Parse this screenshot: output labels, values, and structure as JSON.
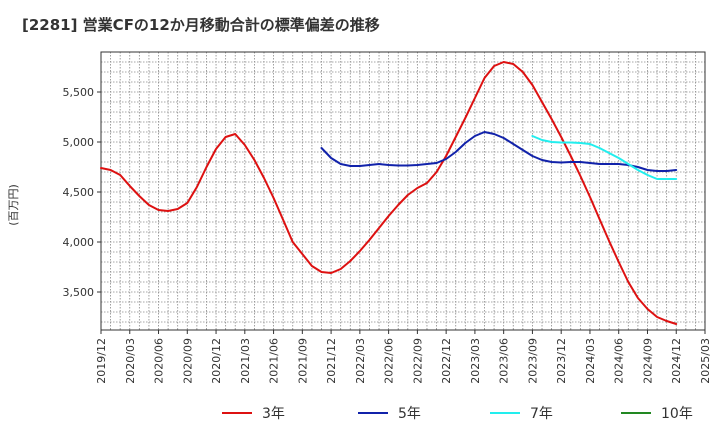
{
  "chart_data": {
    "type": "line",
    "title": "[2281]  営業CFの12か月移動合計の標準偏差の推移",
    "ylabel": "(百万円)",
    "xlabel": "",
    "ylim": [
      3120,
      5900
    ],
    "y_ticks": [
      3500,
      4000,
      4500,
      5000,
      5500
    ],
    "y_tick_labels": [
      "3,500",
      "4,000",
      "4,500",
      "5,000",
      "5,500"
    ],
    "x_tick_labels": [
      "2019/12",
      "2020/03",
      "2020/06",
      "2020/09",
      "2020/12",
      "2021/03",
      "2021/06",
      "2021/09",
      "2021/12",
      "2022/03",
      "2022/06",
      "2022/09",
      "2022/12",
      "2023/03",
      "2023/06",
      "2023/09",
      "2023/12",
      "2024/03",
      "2024/06",
      "2024/09",
      "2024/12",
      "2025/03"
    ],
    "x_start": "2019/12",
    "x_end": "2025/03",
    "grid": true,
    "legend_position": "bottom",
    "series": [
      {
        "name": "3年",
        "color": "#dd1111",
        "points": [
          [
            "2019/12",
            4740
          ],
          [
            "2020/01",
            4720
          ],
          [
            "2020/02",
            4670
          ],
          [
            "2020/03",
            4560
          ],
          [
            "2020/04",
            4460
          ],
          [
            "2020/05",
            4370
          ],
          [
            "2020/06",
            4320
          ],
          [
            "2020/07",
            4310
          ],
          [
            "2020/08",
            4330
          ],
          [
            "2020/09",
            4390
          ],
          [
            "2020/10",
            4550
          ],
          [
            "2020/11",
            4750
          ],
          [
            "2020/12",
            4930
          ],
          [
            "2021/01",
            5050
          ],
          [
            "2021/02",
            5080
          ],
          [
            "2021/03",
            4970
          ],
          [
            "2021/04",
            4820
          ],
          [
            "2021/05",
            4640
          ],
          [
            "2021/06",
            4440
          ],
          [
            "2021/07",
            4220
          ],
          [
            "2021/08",
            4000
          ],
          [
            "2021/09",
            3880
          ],
          [
            "2021/10",
            3760
          ],
          [
            "2021/11",
            3700
          ],
          [
            "2021/12",
            3690
          ],
          [
            "2022/01",
            3730
          ],
          [
            "2022/02",
            3810
          ],
          [
            "2022/03",
            3910
          ],
          [
            "2022/04",
            4020
          ],
          [
            "2022/05",
            4140
          ],
          [
            "2022/06",
            4260
          ],
          [
            "2022/07",
            4370
          ],
          [
            "2022/08",
            4470
          ],
          [
            "2022/09",
            4540
          ],
          [
            "2022/10",
            4590
          ],
          [
            "2022/11",
            4700
          ],
          [
            "2022/12",
            4860
          ],
          [
            "2023/01",
            5050
          ],
          [
            "2023/02",
            5240
          ],
          [
            "2023/03",
            5440
          ],
          [
            "2023/04",
            5640
          ],
          [
            "2023/05",
            5760
          ],
          [
            "2023/06",
            5800
          ],
          [
            "2023/07",
            5780
          ],
          [
            "2023/08",
            5700
          ],
          [
            "2023/09",
            5570
          ],
          [
            "2023/10",
            5400
          ],
          [
            "2023/11",
            5230
          ],
          [
            "2023/12",
            5050
          ],
          [
            "2024/01",
            4860
          ],
          [
            "2024/02",
            4660
          ],
          [
            "2024/03",
            4450
          ],
          [
            "2024/04",
            4230
          ],
          [
            "2024/05",
            4010
          ],
          [
            "2024/06",
            3800
          ],
          [
            "2024/07",
            3600
          ],
          [
            "2024/08",
            3440
          ],
          [
            "2024/09",
            3330
          ],
          [
            "2024/10",
            3250
          ],
          [
            "2024/11",
            3210
          ],
          [
            "2024/12",
            3180
          ]
        ]
      },
      {
        "name": "5年",
        "color": "#1122aa",
        "points": [
          [
            "2021/11",
            4940
          ],
          [
            "2021/12",
            4840
          ],
          [
            "2022/01",
            4780
          ],
          [
            "2022/02",
            4760
          ],
          [
            "2022/03",
            4760
          ],
          [
            "2022/04",
            4770
          ],
          [
            "2022/05",
            4780
          ],
          [
            "2022/06",
            4770
          ],
          [
            "2022/07",
            4765
          ],
          [
            "2022/08",
            4765
          ],
          [
            "2022/09",
            4770
          ],
          [
            "2022/10",
            4780
          ],
          [
            "2022/11",
            4790
          ],
          [
            "2022/12",
            4830
          ],
          [
            "2023/01",
            4900
          ],
          [
            "2023/02",
            4990
          ],
          [
            "2023/03",
            5060
          ],
          [
            "2023/04",
            5100
          ],
          [
            "2023/05",
            5080
          ],
          [
            "2023/06",
            5040
          ],
          [
            "2023/07",
            4980
          ],
          [
            "2023/08",
            4920
          ],
          [
            "2023/09",
            4860
          ],
          [
            "2023/10",
            4820
          ],
          [
            "2023/11",
            4800
          ],
          [
            "2023/12",
            4795
          ],
          [
            "2024/01",
            4800
          ],
          [
            "2024/02",
            4800
          ],
          [
            "2024/03",
            4790
          ],
          [
            "2024/04",
            4780
          ],
          [
            "2024/05",
            4780
          ],
          [
            "2024/06",
            4780
          ],
          [
            "2024/07",
            4770
          ],
          [
            "2024/08",
            4750
          ],
          [
            "2024/09",
            4720
          ],
          [
            "2024/10",
            4710
          ],
          [
            "2024/11",
            4710
          ],
          [
            "2024/12",
            4720
          ]
        ]
      },
      {
        "name": "7年",
        "color": "#22eeee",
        "points": [
          [
            "2023/09",
            5060
          ],
          [
            "2023/10",
            5020
          ],
          [
            "2023/11",
            5000
          ],
          [
            "2023/12",
            4995
          ],
          [
            "2024/01",
            4995
          ],
          [
            "2024/02",
            4990
          ],
          [
            "2024/03",
            4980
          ],
          [
            "2024/04",
            4940
          ],
          [
            "2024/05",
            4890
          ],
          [
            "2024/06",
            4840
          ],
          [
            "2024/07",
            4780
          ],
          [
            "2024/08",
            4720
          ],
          [
            "2024/09",
            4670
          ],
          [
            "2024/10",
            4630
          ],
          [
            "2024/11",
            4630
          ],
          [
            "2024/12",
            4630
          ]
        ]
      },
      {
        "name": "10年",
        "color": "#228822",
        "points": []
      }
    ]
  }
}
